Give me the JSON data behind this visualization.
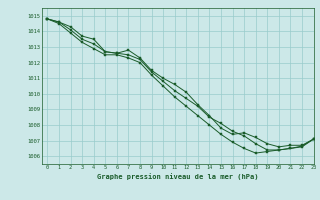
{
  "title": "Graphe pression niveau de la mer (hPa)",
  "bg_color": "#cce8e8",
  "grid_color": "#99cccc",
  "line_color": "#1a5c2a",
  "marker_color": "#1a5c2a",
  "xlim": [
    -0.5,
    23
  ],
  "ylim": [
    1005.5,
    1015.5
  ],
  "yticks": [
    1006,
    1007,
    1008,
    1009,
    1010,
    1011,
    1012,
    1013,
    1014,
    1015
  ],
  "xticks": [
    0,
    1,
    2,
    3,
    4,
    5,
    6,
    7,
    8,
    9,
    10,
    11,
    12,
    13,
    14,
    15,
    16,
    17,
    18,
    19,
    20,
    21,
    22,
    23
  ],
  "series1": [
    1014.8,
    1014.6,
    1014.3,
    1013.7,
    1013.5,
    1012.7,
    1012.6,
    1012.8,
    1012.3,
    1011.5,
    1011.0,
    1010.6,
    1010.1,
    1009.3,
    1008.6,
    1007.8,
    1007.4,
    1007.5,
    1007.2,
    1006.8,
    1006.6,
    1006.7,
    1006.7,
    1007.1
  ],
  "series2": [
    1014.8,
    1014.6,
    1014.1,
    1013.5,
    1013.2,
    1012.7,
    1012.6,
    1012.5,
    1012.2,
    1011.4,
    1010.8,
    1010.2,
    1009.7,
    1009.2,
    1008.5,
    1008.1,
    1007.6,
    1007.3,
    1006.8,
    1006.4,
    1006.4,
    1006.5,
    1006.65,
    1007.1
  ],
  "series3": [
    1014.8,
    1014.5,
    1013.9,
    1013.3,
    1012.9,
    1012.5,
    1012.5,
    1012.3,
    1012.0,
    1011.2,
    1010.5,
    1009.8,
    1009.2,
    1008.6,
    1008.0,
    1007.4,
    1006.9,
    1006.5,
    1006.2,
    1006.3,
    1006.4,
    1006.5,
    1006.6,
    1007.1
  ]
}
